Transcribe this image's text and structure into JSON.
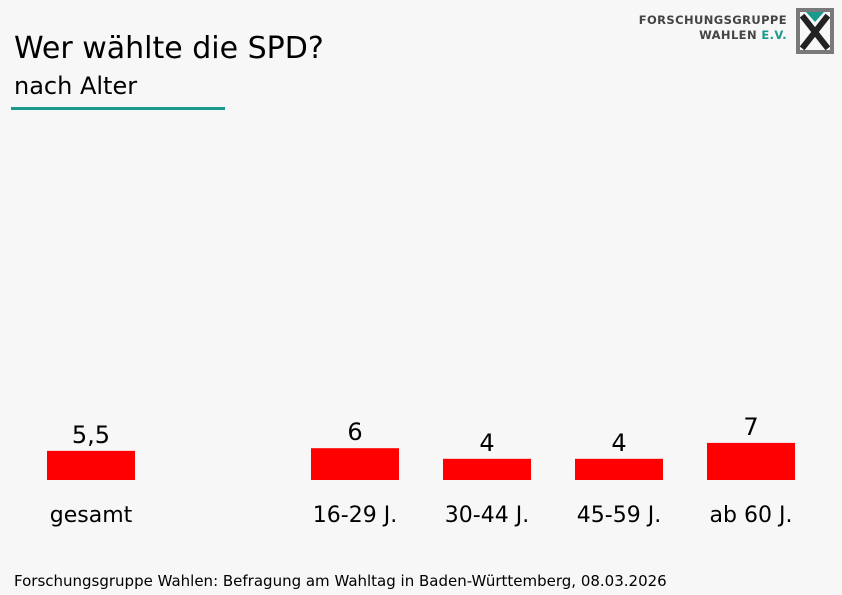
{
  "title": "Wer wählte die SPD?",
  "subtitle": "nach Alter",
  "logo": {
    "line1": "FORSCHUNGSGRUPPE",
    "line2_a": "WAHLEN",
    "line2_b": "E.V."
  },
  "colors": {
    "bar": "#ff0000",
    "accent": "#1a9a8c",
    "logo_gray": "#7a7a7a",
    "logo_dark": "#222222"
  },
  "chart_data": {
    "type": "bar",
    "title": "Wer wählte die SPD?",
    "subtitle": "nach Alter",
    "categories": [
      "gesamt",
      "16-29 J.",
      "30-44 J.",
      "45-59 J.",
      "ab 60 J."
    ],
    "values": [
      5.5,
      6,
      4,
      4,
      7
    ],
    "value_labels": [
      "5,5",
      "6",
      "4",
      "4",
      "7"
    ],
    "xlabel": "",
    "ylabel": "",
    "unit": "%",
    "ylim": [
      0,
      100
    ],
    "grid": false
  },
  "footer": "Forschungsgruppe Wahlen: Befragung am Wahltag in Baden-Württemberg, 08.03.2026"
}
